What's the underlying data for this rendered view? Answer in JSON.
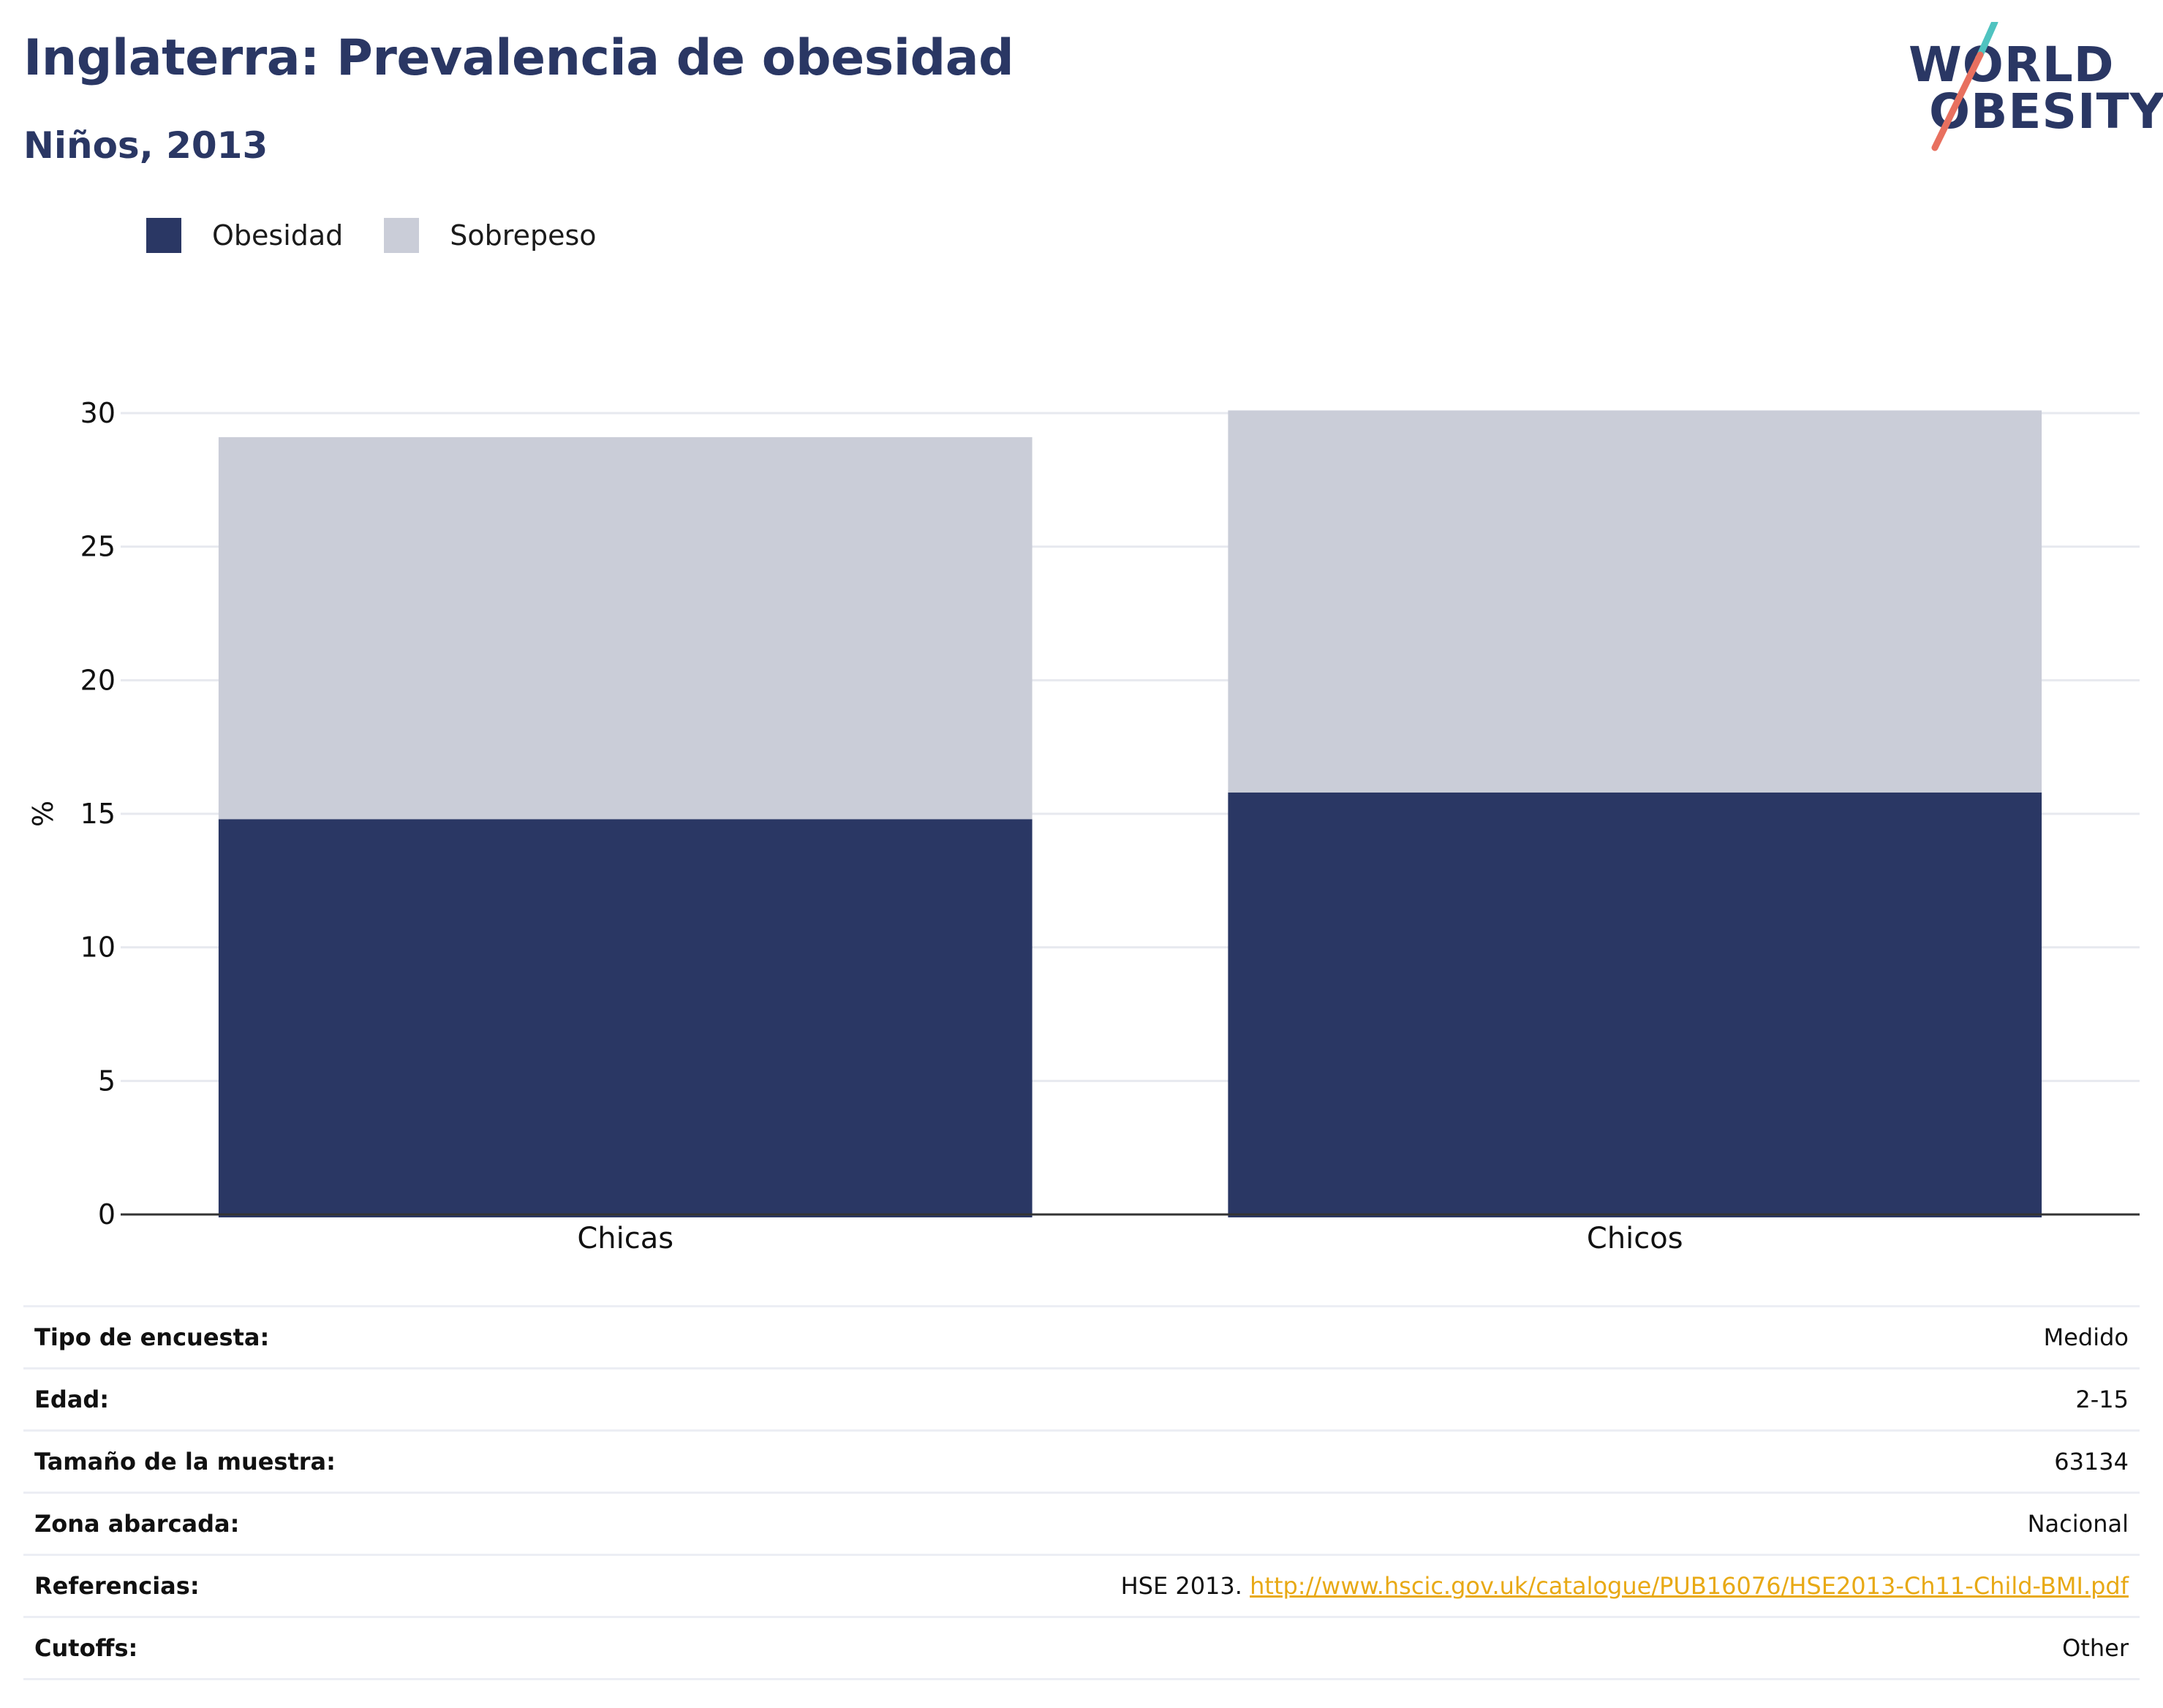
{
  "header": {
    "title": "Inglaterra: Prevalencia de obesidad",
    "subtitle": "Niños, 2013"
  },
  "logo": {
    "line1": "WORLD",
    "line2": "OBESITY",
    "slash_colors": [
      "#4fc3c0",
      "#e8705f"
    ]
  },
  "legend": {
    "items": [
      {
        "label": "Obesidad",
        "color": "#2a3764"
      },
      {
        "label": "Sobrepeso",
        "color": "#cacdd8"
      }
    ]
  },
  "chart_data": {
    "type": "bar",
    "stacked": true,
    "categories": [
      "Chicas",
      "Chicos"
    ],
    "series": [
      {
        "name": "Obesidad",
        "values": [
          14.8,
          15.8
        ],
        "color": "#2a3764"
      },
      {
        "name": "Sobrepeso",
        "values": [
          14.3,
          14.3
        ],
        "color": "#cacdd8"
      }
    ],
    "ylabel": "%",
    "ylim": [
      0,
      30
    ],
    "yticks": [
      "0",
      "5",
      "10",
      "15",
      "20",
      "25",
      "30"
    ],
    "grid": true,
    "legend_position": "top-left"
  },
  "info": {
    "rows": [
      {
        "key": "Tipo de encuesta:",
        "value": "Medido"
      },
      {
        "key": "Edad:",
        "value": "2-15"
      },
      {
        "key": "Tamaño de la muestra:",
        "value": "63134"
      },
      {
        "key": "Zona abarcada:",
        "value": "Nacional"
      },
      {
        "key": "Referencias:",
        "value": "HSE 2013. ",
        "link": "http://www.hscic.gov.uk/catalogue/PUB16076/HSE2013-Ch11-Child-BMI.pdf"
      },
      {
        "key": "Cutoffs:",
        "value": "Other"
      }
    ]
  }
}
